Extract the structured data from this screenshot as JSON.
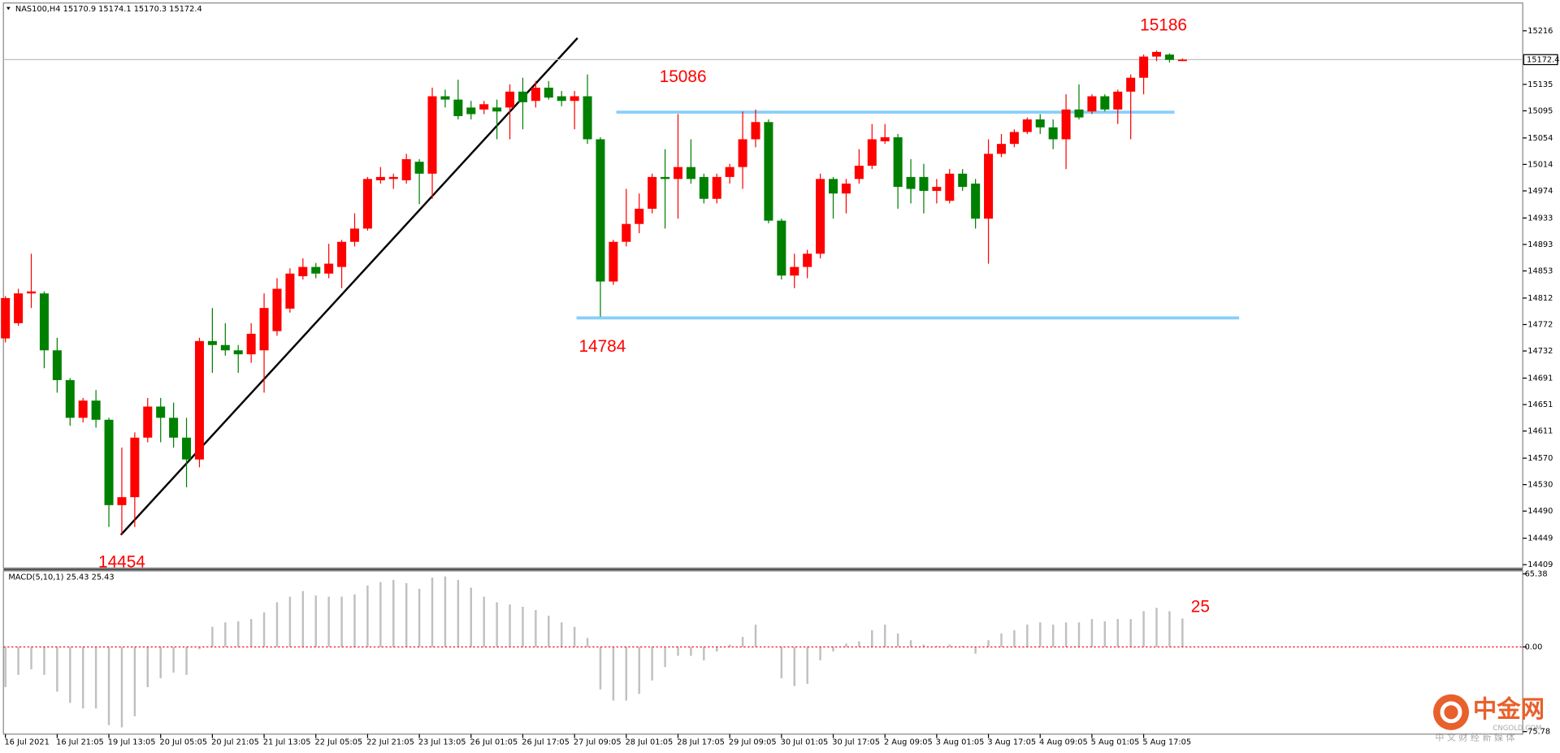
{
  "chart_data": [
    {
      "type": "candlestick",
      "title": "NAS100,H4  15170.9 15174.1 15170.3 15172.4",
      "categories": [
        "16 Jul 2021",
        null,
        null,
        null,
        "16 Jul 21:05",
        null,
        null,
        null,
        "19 Jul 13:05",
        null,
        null,
        null,
        "20 Jul 05:05",
        null,
        null,
        null,
        "20 Jul 21:05",
        null,
        null,
        null,
        "21 Jul 13:05",
        null,
        null,
        null,
        "22 Jul 05:05",
        null,
        null,
        null,
        "22 Jul 21:05",
        null,
        null,
        null,
        "23 Jul 13:05",
        null,
        null,
        null,
        "26 Jul 01:05",
        null,
        null,
        null,
        "26 Jul 17:05",
        null,
        null,
        null,
        "27 Jul 09:05",
        null,
        null,
        null,
        "28 Jul 01:05",
        null,
        null,
        null,
        "28 Jul 17:05",
        null,
        null,
        null,
        "29 Jul 09:05",
        null,
        null,
        null,
        "30 Jul 01:05",
        null,
        null,
        null,
        "30 Jul 17:05",
        null,
        null,
        null,
        "2 Aug 09:05",
        null,
        null,
        null,
        "3 Aug 01:05",
        null,
        null,
        null,
        "3 Aug 17:05",
        null,
        null,
        null,
        "4 Aug 09:05",
        null,
        null,
        null,
        "5 Aug 01:05",
        null,
        null,
        null,
        "5 Aug 17:05",
        null,
        null,
        null
      ],
      "open": [
        14751,
        14774,
        14819,
        14819,
        14733,
        14688,
        14631,
        14657,
        14628,
        14499,
        14511,
        14601,
        14648,
        14631,
        14601,
        14568,
        14747,
        14741,
        14733,
        14727,
        14733,
        14762,
        14796,
        14845,
        14859,
        14849,
        14859,
        14897,
        14917,
        14990,
        14992,
        14990,
        15018,
        15000,
        15117,
        15112,
        15100,
        15097,
        15100,
        15100,
        15124,
        15110,
        15130,
        15117,
        15110,
        15117,
        15052,
        14837,
        14897,
        14924,
        14947,
        14995,
        14992,
        15010,
        14995,
        14962,
        14995,
        15010,
        15052,
        15078,
        14929,
        14846,
        14859,
        14879,
        14992,
        14970,
        14992,
        15012,
        15049,
        15055,
        14995,
        14995,
        14974,
        14959,
        15000,
        14985,
        14932,
        15030,
        15045,
        15063,
        15082,
        15070,
        15052,
        15097,
        15094,
        15117,
        15097,
        15124,
        15145,
        15177,
        15180,
        15170.9
      ],
      "high": [
        14815,
        14826,
        14879,
        14822,
        14752,
        14691,
        14661,
        14673,
        14631,
        14586,
        14609,
        14661,
        14661,
        14654,
        14631,
        14752,
        14797,
        14774,
        14741,
        14774,
        14819,
        14842,
        14857,
        14872,
        14865,
        14894,
        14900,
        14940,
        14995,
        15010,
        15000,
        15030,
        15022,
        15130,
        15127,
        15142,
        15110,
        15110,
        15112,
        15135,
        15145,
        15140,
        15140,
        15125,
        15125,
        15150,
        15055,
        14900,
        14977,
        14970,
        15000,
        15037,
        15090,
        15052,
        15000,
        15000,
        15015,
        15094,
        15097,
        15082,
        14932,
        14879,
        14885,
        15000,
        14995,
        14992,
        15037,
        15075,
        15075,
        15060,
        15022,
        15015,
        14992,
        15007,
        15007,
        14992,
        15052,
        15060,
        15067,
        15085,
        15090,
        15082,
        15120,
        15135,
        15120,
        15120,
        15127,
        15150,
        15180,
        15186,
        15182,
        15174.1
      ],
      "low": [
        14745,
        14770,
        14797,
        14706,
        14669,
        14619,
        14624,
        14616,
        14466,
        14454,
        14466,
        14594,
        14594,
        14586,
        14526,
        14556,
        14699,
        14725,
        14699,
        14714,
        14669,
        14755,
        14790,
        14840,
        14842,
        14842,
        14827,
        14890,
        14914,
        14985,
        14977,
        14985,
        14954,
        14962,
        15100,
        15082,
        15082,
        15090,
        15052,
        15052,
        15067,
        15100,
        15112,
        15102,
        15067,
        15045,
        14784,
        14832,
        14890,
        14910,
        14940,
        14917,
        14932,
        14985,
        14955,
        14955,
        14985,
        14977,
        15040,
        14925,
        14840,
        14827,
        14842,
        14872,
        14932,
        14940,
        14985,
        15007,
        15045,
        14947,
        14955,
        14940,
        14955,
        14955,
        14974,
        14917,
        14864,
        15025,
        15040,
        15060,
        15060,
        15037,
        15007,
        15082,
        15090,
        15094,
        15075,
        15052,
        15120,
        15170,
        15168,
        15170.3
      ],
      "close": [
        14812,
        14819,
        14822,
        14733,
        14688,
        14631,
        14657,
        14628,
        14499,
        14511,
        14601,
        14648,
        14631,
        14601,
        14568,
        14747,
        14741,
        14733,
        14727,
        14758,
        14797,
        14826,
        14849,
        14859,
        14849,
        14864,
        14897,
        14917,
        14992,
        14995,
        14995,
        15022,
        15000,
        15117,
        15112,
        15087,
        15090,
        15105,
        15094,
        15124,
        15108,
        15130,
        15115,
        15110,
        15117,
        15052,
        14837,
        14897,
        14924,
        14947,
        14995,
        14992,
        15010,
        14992,
        14962,
        14995,
        15010,
        15052,
        15078,
        14929,
        14846,
        14859,
        14879,
        14992,
        14970,
        14985,
        15012,
        15052,
        15055,
        14980,
        14977,
        14974,
        14980,
        15000,
        14980,
        14932,
        15030,
        15045,
        15063,
        15082,
        15070,
        15052,
        15097,
        15085,
        15117,
        15097,
        15124,
        15145,
        15177,
        15184,
        15172,
        15172.4
      ],
      "up_color": "#ff0000",
      "down_color": "#008000",
      "ylim": [
        14404,
        15258
      ],
      "yticks": [
        14409,
        14449,
        14490,
        14530,
        14570,
        14611,
        14651,
        14691,
        14732,
        14772,
        14812,
        14853,
        14893,
        14933,
        14974,
        15014,
        15054,
        15095,
        15135,
        15216
      ],
      "levels": [
        15093,
        14782
      ],
      "level_color": "#87cefa",
      "trendline": [
        14454,
        15205
      ],
      "annotations": [
        "15186",
        "15086",
        "14784",
        "14454"
      ]
    },
    {
      "type": "bar",
      "title": "MACD(5,10,1) 25.43 25.43",
      "values": [
        -36,
        -25,
        -20,
        -25,
        -40,
        -50,
        -55,
        -55,
        -70,
        -72,
        -62,
        -36,
        -28,
        -23,
        -25,
        -2,
        18,
        22,
        23,
        25,
        31,
        40,
        45,
        50,
        46,
        45,
        45,
        47,
        55,
        58,
        60,
        57,
        52,
        62,
        63,
        60,
        53,
        45,
        40,
        38,
        36,
        33,
        28,
        22,
        18,
        8,
        -38,
        -48,
        -48,
        -42,
        -30,
        -18,
        -8,
        -8,
        -12,
        -4,
        2,
        9,
        20,
        0,
        -28,
        -35,
        -33,
        -12,
        -4,
        3,
        5,
        15,
        20,
        12,
        6,
        2,
        1,
        2,
        1,
        -6,
        6,
        12,
        15,
        20,
        22,
        20,
        22,
        22,
        25,
        23,
        25,
        25,
        32,
        35,
        32,
        25.43
      ],
      "color": "#c0c0c0",
      "ylim": [
        -78,
        68
      ],
      "yticks": [
        {
          "value": -75.78,
          "label": "-75.78"
        },
        {
          "value": 0,
          "label": "0.00"
        },
        65.38
      ],
      "zero_line_color": "#ff0000",
      "annotations": [
        "25"
      ]
    }
  ],
  "watermark": {
    "name": "中金网",
    "site": "CNGOLD.COM",
    "tagline": "中 文 财 经 新 媒 体"
  }
}
